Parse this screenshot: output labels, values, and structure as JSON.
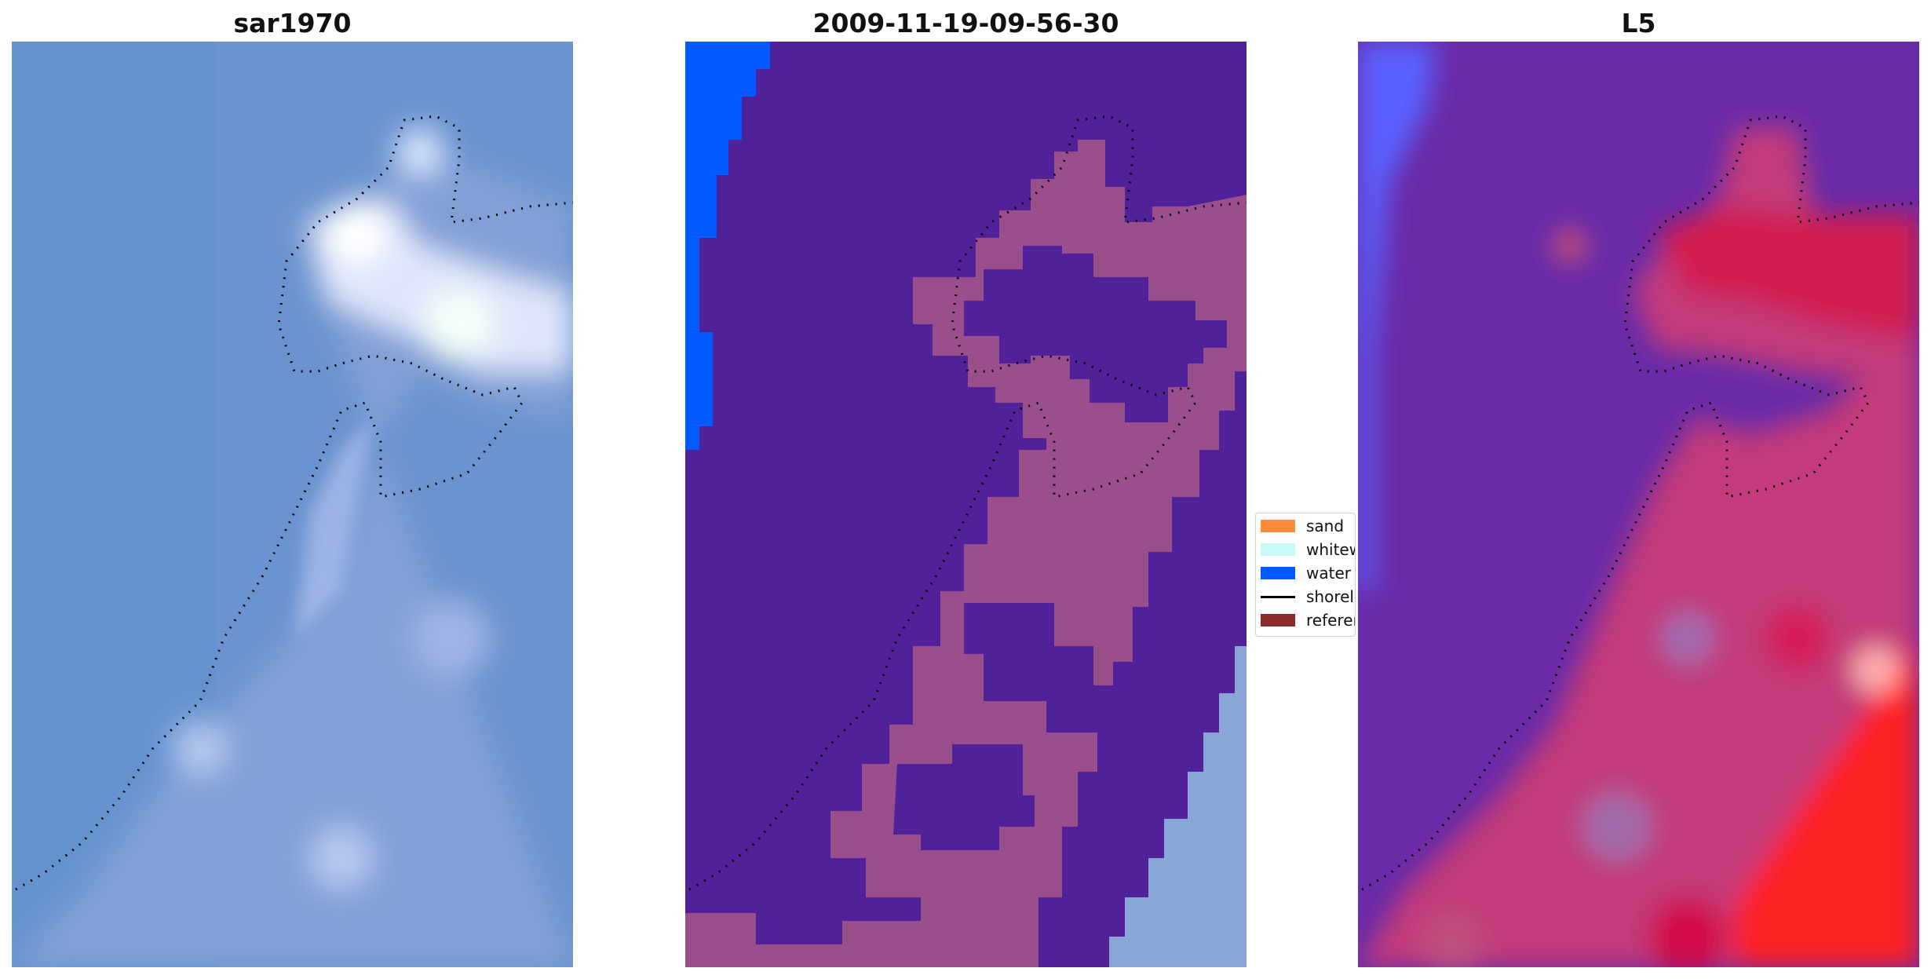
{
  "panels": [
    {
      "title": "sar1970"
    },
    {
      "title": "2009-11-19-09-56-30"
    },
    {
      "title": "L5"
    }
  ],
  "legend": {
    "items": [
      {
        "label": "sand",
        "color": "#ff8c3c",
        "kind": "patch"
      },
      {
        "label": "whitewater",
        "color": "#c8fafa",
        "kind": "patch"
      },
      {
        "label": "water",
        "color": "#005aff",
        "kind": "patch"
      },
      {
        "label": "shoreline",
        "color": "#000000",
        "kind": "line"
      },
      {
        "label": "reference",
        "color": "#8c2a2a",
        "kind": "patch"
      }
    ]
  },
  "colors": {
    "rgb_background": "#6e96cd",
    "rgb_highlight": "#e6ecff",
    "classified_background": "#51219a",
    "classified_land": "#9a4f8c",
    "classified_water": "#005aff",
    "classified_image_edge": "#8aa6d6",
    "index_low": "#5a20a0",
    "index_high": "#ff1a1a",
    "index_water_edge": "#5a60ff"
  }
}
